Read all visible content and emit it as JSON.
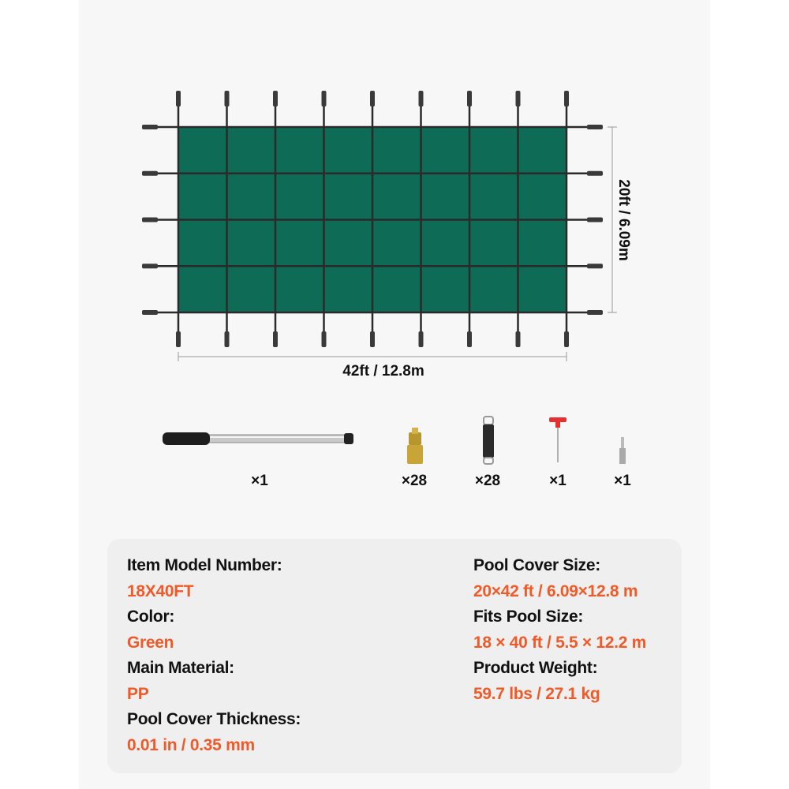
{
  "colors": {
    "cover_green": "#0e6b55",
    "accent": "#f05a28",
    "strap": "#2a2a2a"
  },
  "cover": {
    "grid_columns": 8,
    "grid_rows": 4,
    "width_label": "42ft / 12.8m",
    "height_label": "20ft / 6.09m"
  },
  "accessories": [
    {
      "name": "installation-rod",
      "count": "×1"
    },
    {
      "name": "brass-anchor",
      "count": "×28"
    },
    {
      "name": "spring",
      "count": "×28"
    },
    {
      "name": "t-wrench",
      "count": "×1"
    },
    {
      "name": "hex-tool",
      "count": "×1"
    }
  ],
  "specs": {
    "left": [
      {
        "label": "Item Model Number:",
        "value": "18X40FT"
      },
      {
        "label": "Color:",
        "value": "Green"
      },
      {
        "label": "Main Material:",
        "value": "PP"
      },
      {
        "label": "Pool Cover Thickness:",
        "value": "0.01 in / 0.35 mm"
      }
    ],
    "right": [
      {
        "label": "Pool Cover Size:",
        "value": "20×42 ft / 6.09×12.8 m"
      },
      {
        "label": "Fits Pool Size:",
        "value": "18 × 40 ft / 5.5 × 12.2 m"
      },
      {
        "label": "Product Weight:",
        "value": "59.7 lbs / 27.1 kg"
      }
    ]
  }
}
